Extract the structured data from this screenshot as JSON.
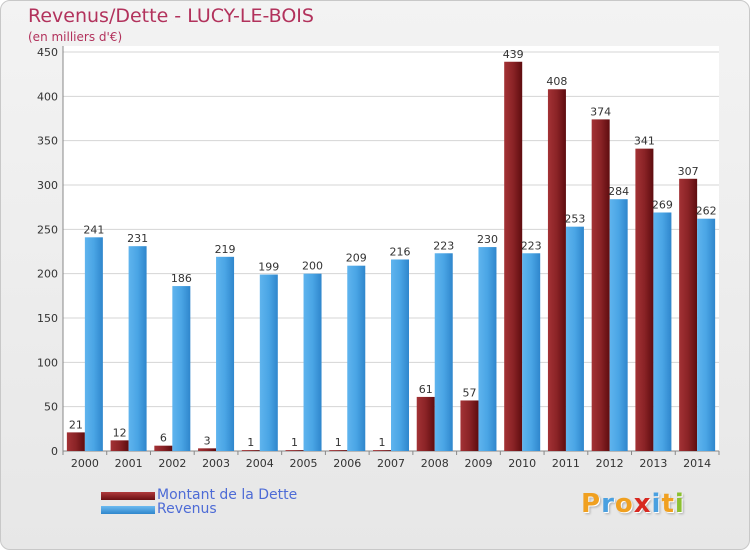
{
  "title": "Revenus/Dette - LUCY-LE-BOIS",
  "subtitle": "(en milliers d'€)",
  "colors": {
    "dette": "#7b1719",
    "revenus": "#3b98dc",
    "title": "#b2325c",
    "legend_text": "#4d6bd6"
  },
  "legend": {
    "dette_label": "Montant de la Dette",
    "revenus_label": "Revenus"
  },
  "logo": {
    "text": "Proxiti",
    "letters": [
      "P",
      "r",
      "o",
      "x",
      "i",
      "t",
      "i"
    ],
    "letter_colors": [
      "#f0a020",
      "#4aa0e0",
      "#f0a020",
      "#d82820",
      "#4aa0e0",
      "#f0a020",
      "#8cc030"
    ]
  },
  "chart_data": {
    "type": "bar",
    "categories": [
      "2000",
      "2001",
      "2002",
      "2003",
      "2004",
      "2005",
      "2006",
      "2007",
      "2008",
      "2009",
      "2010",
      "2011",
      "2012",
      "2013",
      "2014"
    ],
    "series": [
      {
        "name": "Montant de la Dette",
        "values": [
          21,
          12,
          6,
          3,
          1,
          1,
          1,
          1,
          61,
          57,
          439,
          408,
          374,
          341,
          307
        ]
      },
      {
        "name": "Revenus",
        "values": [
          241,
          231,
          186,
          219,
          199,
          200,
          209,
          216,
          223,
          230,
          223,
          253,
          284,
          269,
          262
        ]
      }
    ],
    "ylim": [
      0,
      450
    ],
    "yticks": [
      0,
      50,
      100,
      150,
      200,
      250,
      300,
      350,
      400,
      450
    ],
    "grid": true,
    "legend_position": "bottom-left"
  }
}
